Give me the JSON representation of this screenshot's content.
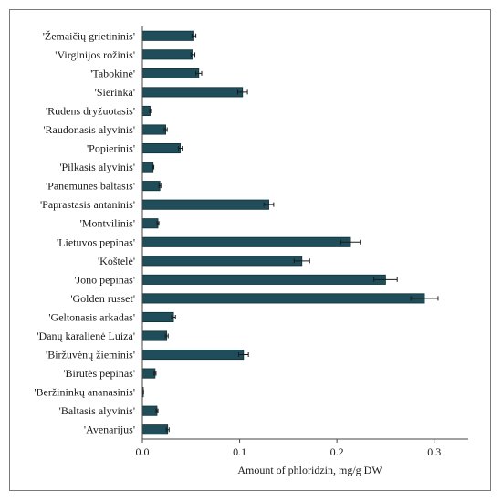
{
  "chart_data": {
    "type": "bar",
    "orientation": "horizontal",
    "xlabel": "Amount of phloridzin,  mg/g DW",
    "ylabel": "",
    "title": "",
    "xlim": [
      0,
      0.335
    ],
    "xticks": [
      0,
      0.1,
      0.2,
      0.3
    ],
    "xtick_labels": [
      "0.0",
      "0.1",
      "0.2",
      "0.3"
    ],
    "grid": false,
    "legend": "none",
    "bar_color": "#1f4e5a",
    "categories": [
      "'Žemaičių grietininis'",
      "'Virginijos rožinis'",
      "'Tabokinė'",
      "'Sierinka'",
      "'Rudens dryžuotasis'",
      "'Raudonasis alyvinis'",
      "'Popierinis'",
      "'Pilkasis alyvinis'",
      "'Panemunės baltasis'",
      "'Paprastasis antaninis'",
      "'Montvilinis'",
      "'Lietuvos pepinas'",
      "'Koštelė'",
      "'Jono pepinas'",
      "'Golden russet'",
      "'Geltonasis arkadas'",
      "'Danų karalienė Luiza'",
      "'Biržuvėnų žieminis'",
      "'Birutės pepinas'",
      "'Beržininkų ananasinis'",
      "'Baltasis alyvinis'",
      "'Avenarijus'"
    ],
    "values": [
      0.053,
      0.052,
      0.058,
      0.103,
      0.008,
      0.024,
      0.039,
      0.011,
      0.018,
      0.13,
      0.016,
      0.214,
      0.164,
      0.25,
      0.29,
      0.032,
      0.025,
      0.104,
      0.013,
      0.001,
      0.015,
      0.026
    ],
    "errors": [
      0.002,
      0.002,
      0.003,
      0.005,
      0.0005,
      0.0015,
      0.002,
      0.0008,
      0.001,
      0.005,
      0.001,
      0.01,
      0.008,
      0.012,
      0.014,
      0.002,
      0.0015,
      0.005,
      0.001,
      0.0002,
      0.001,
      0.0015
    ]
  }
}
